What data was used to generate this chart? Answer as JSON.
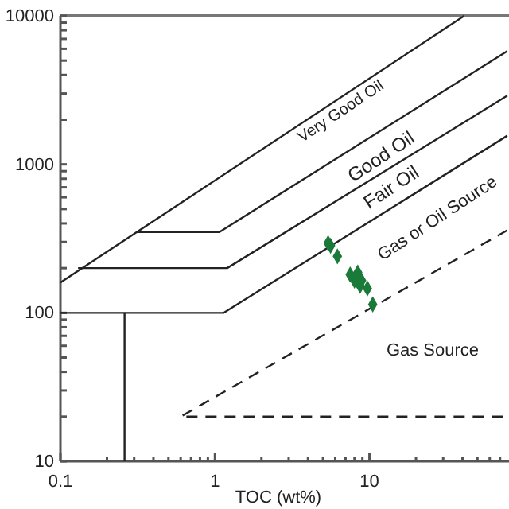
{
  "chart_data": {
    "type": "line",
    "xlabel": "TOC (wt%)",
    "log": "xy",
    "xlim": [
      0.1,
      80
    ],
    "ylim": [
      10,
      10000
    ],
    "xticks": [
      0.1,
      {
        "value": 0.2,
        "label": null
      },
      {
        "value": 0.3,
        "label": null
      },
      {
        "value": 0.4,
        "label": null
      },
      {
        "value": 0.5,
        "label": null
      },
      {
        "value": 0.6,
        "label": null
      },
      {
        "value": 0.7,
        "label": null
      },
      {
        "value": 0.8,
        "label": null
      },
      {
        "value": 0.9,
        "label": null
      },
      1,
      {
        "value": 2,
        "label": null
      },
      {
        "value": 3,
        "label": null
      },
      {
        "value": 4,
        "label": null
      },
      {
        "value": 5,
        "label": null
      },
      {
        "value": 6,
        "label": null
      },
      {
        "value": 7,
        "label": null
      },
      {
        "value": 8,
        "label": null
      },
      {
        "value": 9,
        "label": null
      },
      10,
      {
        "value": 20,
        "label": null
      },
      {
        "value": 30,
        "label": null
      },
      {
        "value": 40,
        "label": null
      },
      {
        "value": 50,
        "label": null
      },
      {
        "value": 60,
        "label": null
      },
      {
        "value": 70,
        "label": null
      }
    ],
    "yticks": [
      10,
      {
        "value": 20,
        "label": null
      },
      {
        "value": 30,
        "label": null
      },
      {
        "value": 40,
        "label": null
      },
      {
        "value": 50,
        "label": null
      },
      {
        "value": 60,
        "label": null
      },
      {
        "value": 70,
        "label": null
      },
      {
        "value": 80,
        "label": null
      },
      {
        "value": 90,
        "label": null
      },
      100,
      {
        "value": 200,
        "label": null
      },
      {
        "value": 300,
        "label": null
      },
      {
        "value": 400,
        "label": null
      },
      {
        "value": 500,
        "label": null
      },
      {
        "value": 600,
        "label": null
      },
      {
        "value": 700,
        "label": null
      },
      {
        "value": 800,
        "label": null
      },
      {
        "value": 900,
        "label": null
      },
      1000,
      {
        "value": 2000,
        "label": null
      },
      {
        "value": 3000,
        "label": null
      },
      {
        "value": 4000,
        "label": null
      },
      {
        "value": 5000,
        "label": null
      },
      {
        "value": 6000,
        "label": null
      },
      {
        "value": 7000,
        "label": null
      },
      {
        "value": 8000,
        "label": null
      },
      {
        "value": 9000,
        "label": null
      },
      10000
    ],
    "series": [
      {
        "color": "#222222",
        "line_style": "solid",
        "x": [
          0.1,
          41
        ],
        "values": [
          160,
          10000
        ]
      },
      {
        "color": "#222222",
        "line_style": "solid",
        "x": [
          0.31,
          1.07,
          78
        ],
        "values": [
          350,
          350,
          5800
        ]
      },
      {
        "color": "#222222",
        "line_style": "solid",
        "x": [
          0.13,
          1.2,
          78
        ],
        "values": [
          200,
          200,
          2900
        ]
      },
      {
        "color": "#222222",
        "line_style": "solid",
        "x": [
          0.1,
          1.14,
          78
        ],
        "values": [
          100,
          100,
          1560
        ]
      },
      {
        "color": "#222222",
        "line_style": "solid",
        "x": [
          0.26,
          0.26
        ],
        "values": [
          10,
          100
        ]
      },
      {
        "color": "#222222",
        "line_style": "dashed",
        "x": [
          78,
          0.6,
          78
        ],
        "values": [
          360,
          20,
          20
        ]
      },
      {
        "type": "scatter",
        "color": "#1a7a3a",
        "marker": "diamond",
        "x": [
          5.4,
          5.6,
          6.2,
          7.5,
          8.0,
          8.4,
          8.7,
          8.9,
          9.7,
          10.5
        ],
        "values": [
          295,
          283,
          240,
          181,
          165,
          187,
          152,
          165,
          146,
          114
        ]
      }
    ],
    "annotations": [
      "Very Good Oil",
      "Good Oil",
      "Fair Oil",
      "Gas or Oil Source",
      "Gas Source"
    ]
  }
}
